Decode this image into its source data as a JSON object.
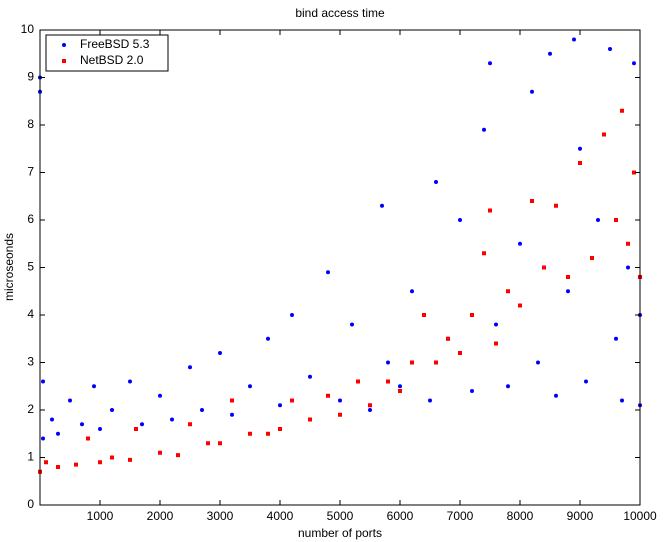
{
  "chart_data": {
    "type": "scatter",
    "title": "bind access time",
    "xlabel": "number of ports",
    "ylabel": "microseonds",
    "xlim": [
      0,
      10000
    ],
    "ylim": [
      0,
      10
    ],
    "xticks": [
      1000,
      2000,
      3000,
      4000,
      5000,
      6000,
      7000,
      8000,
      9000,
      10000
    ],
    "yticks": [
      0,
      1,
      2,
      3,
      4,
      5,
      6,
      7,
      8,
      9,
      10
    ],
    "legend": "upper left",
    "series": [
      {
        "name": "FreeBSD 5.3",
        "color": "#0000ff",
        "marker": "circle",
        "x": [
          0,
          0,
          50,
          50,
          200,
          300,
          500,
          700,
          900,
          1000,
          1200,
          1500,
          1700,
          2000,
          2200,
          2500,
          2700,
          3000,
          3200,
          3500,
          3800,
          4000,
          4200,
          4500,
          4800,
          5000,
          5200,
          5500,
          5700,
          5800,
          6000,
          6200,
          6500,
          6600,
          6800,
          7000,
          7200,
          7400,
          7500,
          7600,
          7800,
          8000,
          8200,
          8300,
          8500,
          8600,
          8800,
          8900,
          9000,
          9100,
          9300,
          9500,
          9600,
          9700,
          9800,
          9900,
          10000,
          10000
        ],
        "values": [
          8.7,
          9.0,
          1.4,
          2.6,
          1.8,
          1.5,
          2.2,
          1.7,
          2.5,
          1.6,
          2.0,
          2.6,
          1.7,
          2.3,
          1.8,
          2.9,
          2.0,
          3.2,
          1.9,
          2.5,
          3.5,
          2.1,
          4.0,
          2.7,
          4.9,
          2.2,
          3.8,
          2.0,
          6.3,
          3.0,
          2.5,
          4.5,
          2.2,
          6.8,
          3.5,
          6.0,
          2.4,
          7.9,
          9.3,
          3.8,
          2.5,
          5.5,
          8.7,
          3.0,
          9.5,
          2.3,
          4.5,
          9.8,
          7.5,
          2.6,
          6.0,
          9.6,
          3.5,
          2.2,
          5.0,
          9.3,
          4.0,
          2.1
        ]
      },
      {
        "name": "NetBSD 2.0",
        "color": "#ff0000",
        "marker": "square",
        "x": [
          0,
          100,
          300,
          600,
          800,
          1000,
          1200,
          1500,
          1600,
          2000,
          2300,
          2500,
          2800,
          3000,
          3200,
          3500,
          3800,
          4000,
          4200,
          4500,
          4800,
          5000,
          5300,
          5500,
          5800,
          6000,
          6200,
          6400,
          6600,
          6800,
          7000,
          7200,
          7400,
          7500,
          7600,
          7800,
          8000,
          8200,
          8400,
          8600,
          8800,
          9000,
          9200,
          9400,
          9600,
          9700,
          9800,
          9900,
          10000
        ],
        "values": [
          0.7,
          0.9,
          0.8,
          0.85,
          1.4,
          0.9,
          1.0,
          0.95,
          1.6,
          1.1,
          1.05,
          1.7,
          1.3,
          1.3,
          2.2,
          1.5,
          1.5,
          1.6,
          2.2,
          1.8,
          2.3,
          1.9,
          2.6,
          2.1,
          2.6,
          2.4,
          3.0,
          4.0,
          3.0,
          3.5,
          3.2,
          4.0,
          5.3,
          6.2,
          3.4,
          4.5,
          4.2,
          6.4,
          5.0,
          6.3,
          4.8,
          7.2,
          5.2,
          7.8,
          6.0,
          8.3,
          5.5,
          7.0,
          4.8
        ]
      }
    ]
  }
}
